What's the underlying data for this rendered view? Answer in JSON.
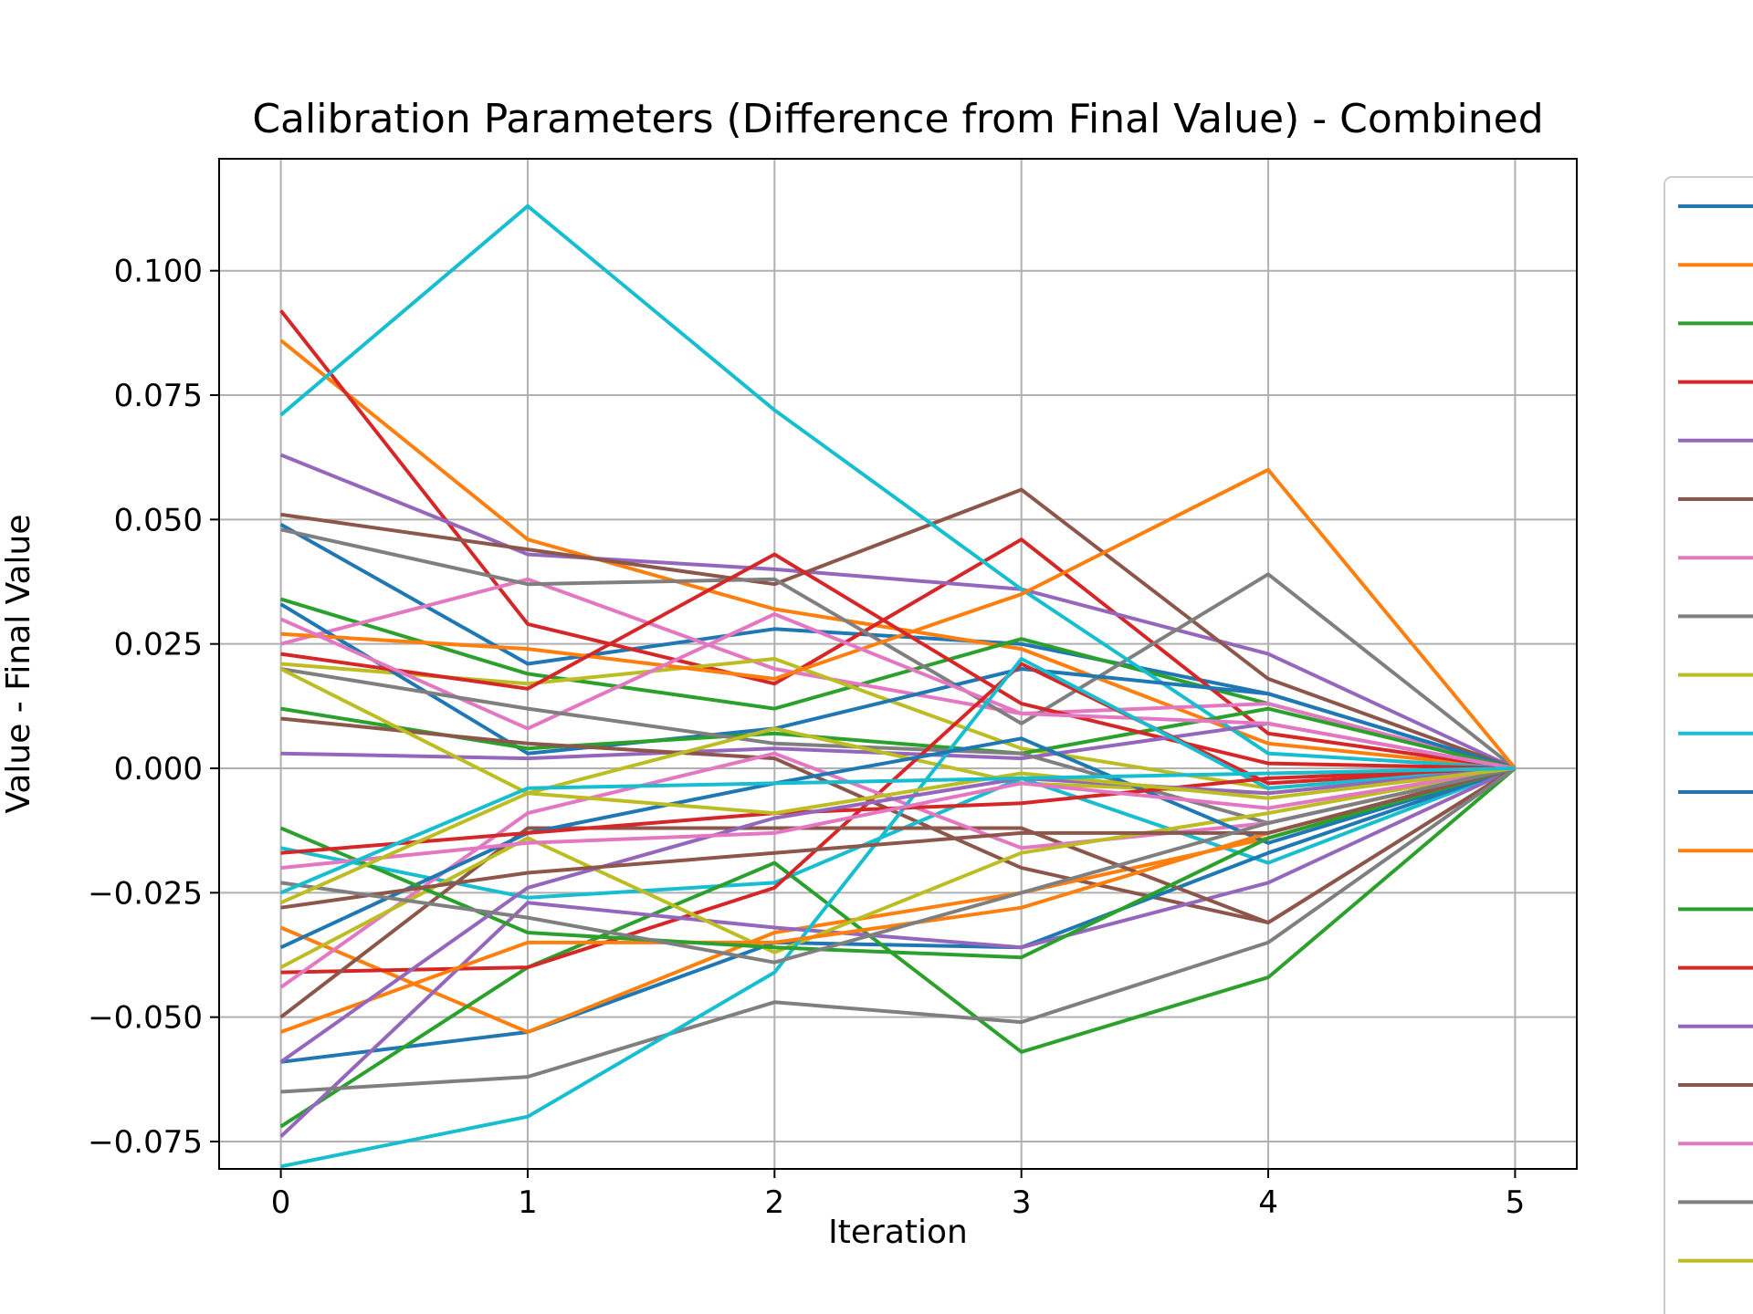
{
  "chart_data": {
    "type": "line",
    "title": "Calibration Parameters (Difference from Final Value) - Combined",
    "xlabel": "Iteration",
    "ylabel": "Value - Final Value",
    "x": [
      0,
      1,
      2,
      3,
      4,
      5
    ],
    "xlim": [
      -0.25,
      5.25
    ],
    "ylim": [
      -0.0805,
      0.1225
    ],
    "xticks": [
      0,
      1,
      2,
      3,
      4,
      5
    ],
    "yticks": [
      -0.075,
      -0.05,
      -0.025,
      0.0,
      0.025,
      0.05,
      0.075,
      0.1
    ],
    "ytick_labels": [
      "−0.075",
      "−0.050",
      "−0.025",
      "0.000",
      "0.025",
      "0.050",
      "0.075",
      "0.100"
    ],
    "grid": true,
    "legend_position": "right (cropped, entries without visible labels)",
    "palette": [
      "#1f77b4",
      "#ff7f0e",
      "#2ca02c",
      "#d62728",
      "#9467bd",
      "#8c564b",
      "#e377c2",
      "#7f7f7f",
      "#bcbd22",
      "#17becf"
    ],
    "legend_entries": 20,
    "series": [
      {
        "values": [
          0.049,
          0.021,
          0.028,
          0.025,
          0.015,
          0.0
        ]
      },
      {
        "values": [
          0.086,
          0.046,
          0.032,
          0.024,
          0.005,
          0.0
        ]
      },
      {
        "values": [
          0.034,
          0.019,
          0.012,
          0.026,
          0.013,
          0.0
        ]
      },
      {
        "values": [
          0.092,
          0.029,
          0.017,
          0.046,
          0.007,
          0.0
        ]
      },
      {
        "values": [
          0.063,
          0.043,
          0.04,
          0.036,
          0.023,
          0.0
        ]
      },
      {
        "values": [
          0.051,
          0.044,
          0.037,
          0.056,
          0.018,
          0.0
        ]
      },
      {
        "values": [
          0.025,
          0.038,
          0.02,
          0.011,
          0.013,
          0.0
        ]
      },
      {
        "values": [
          0.048,
          0.037,
          0.038,
          0.009,
          0.039,
          0.0
        ]
      },
      {
        "values": [
          0.021,
          0.017,
          0.022,
          0.004,
          -0.004,
          0.0
        ]
      },
      {
        "values": [
          0.071,
          0.113,
          0.072,
          0.036,
          0.003,
          0.0
        ]
      },
      {
        "values": [
          0.033,
          0.003,
          0.008,
          0.02,
          0.015,
          0.0
        ]
      },
      {
        "values": [
          0.027,
          0.024,
          0.018,
          0.035,
          0.06,
          0.0
        ]
      },
      {
        "values": [
          0.012,
          0.004,
          0.007,
          0.003,
          0.012,
          0.0
        ]
      },
      {
        "values": [
          0.023,
          0.016,
          0.043,
          0.013,
          0.001,
          0.0
        ]
      },
      {
        "values": [
          0.003,
          0.002,
          0.004,
          0.002,
          0.009,
          0.0
        ]
      },
      {
        "values": [
          0.01,
          0.005,
          0.002,
          -0.02,
          -0.031,
          0.0
        ]
      },
      {
        "values": [
          0.03,
          0.008,
          0.031,
          0.011,
          0.009,
          0.0
        ]
      },
      {
        "values": [
          0.02,
          0.012,
          0.005,
          0.003,
          -0.011,
          0.0
        ]
      },
      {
        "values": [
          0.02,
          -0.005,
          0.008,
          -0.003,
          -0.005,
          0.0
        ]
      },
      {
        "values": [
          -0.016,
          -0.026,
          -0.023,
          -0.002,
          -0.019,
          0.0
        ]
      },
      {
        "values": [
          -0.059,
          -0.053,
          -0.035,
          -0.036,
          -0.017,
          0.0
        ]
      },
      {
        "values": [
          -0.032,
          -0.053,
          -0.033,
          -0.025,
          -0.014,
          0.0
        ]
      },
      {
        "values": [
          -0.072,
          -0.04,
          -0.019,
          -0.057,
          -0.042,
          0.0
        ]
      },
      {
        "values": [
          -0.041,
          -0.04,
          -0.024,
          0.021,
          -0.003,
          0.0
        ]
      },
      {
        "values": [
          -0.074,
          -0.027,
          -0.032,
          -0.036,
          -0.023,
          0.0
        ]
      },
      {
        "values": [
          -0.05,
          -0.012,
          -0.012,
          -0.012,
          -0.031,
          0.0
        ]
      },
      {
        "values": [
          -0.044,
          -0.009,
          0.003,
          -0.016,
          -0.011,
          0.0
        ]
      },
      {
        "values": [
          -0.065,
          -0.062,
          -0.047,
          -0.051,
          -0.035,
          0.0
        ]
      },
      {
        "values": [
          -0.04,
          -0.014,
          -0.037,
          -0.017,
          -0.009,
          0.0
        ]
      },
      {
        "values": [
          -0.08,
          -0.07,
          -0.041,
          0.022,
          -0.004,
          0.0
        ]
      },
      {
        "values": [
          -0.036,
          -0.013,
          -0.003,
          0.006,
          -0.015,
          0.0
        ]
      },
      {
        "values": [
          -0.053,
          -0.035,
          -0.035,
          -0.028,
          -0.013,
          0.0
        ]
      },
      {
        "values": [
          -0.012,
          -0.033,
          -0.036,
          -0.038,
          -0.014,
          0.0
        ]
      },
      {
        "values": [
          -0.017,
          -0.013,
          -0.009,
          -0.007,
          -0.002,
          0.0
        ]
      },
      {
        "values": [
          -0.059,
          -0.024,
          -0.01,
          -0.002,
          -0.005,
          0.0
        ]
      },
      {
        "values": [
          -0.028,
          -0.021,
          -0.017,
          -0.013,
          -0.013,
          0.0
        ]
      },
      {
        "values": [
          -0.02,
          -0.015,
          -0.013,
          -0.003,
          -0.008,
          0.0
        ]
      },
      {
        "values": [
          -0.023,
          -0.03,
          -0.039,
          -0.025,
          -0.011,
          0.0
        ]
      },
      {
        "values": [
          -0.027,
          -0.005,
          -0.009,
          -0.001,
          -0.006,
          0.0
        ]
      },
      {
        "values": [
          -0.025,
          -0.004,
          -0.003,
          -0.002,
          -0.001,
          0.0
        ]
      }
    ]
  }
}
